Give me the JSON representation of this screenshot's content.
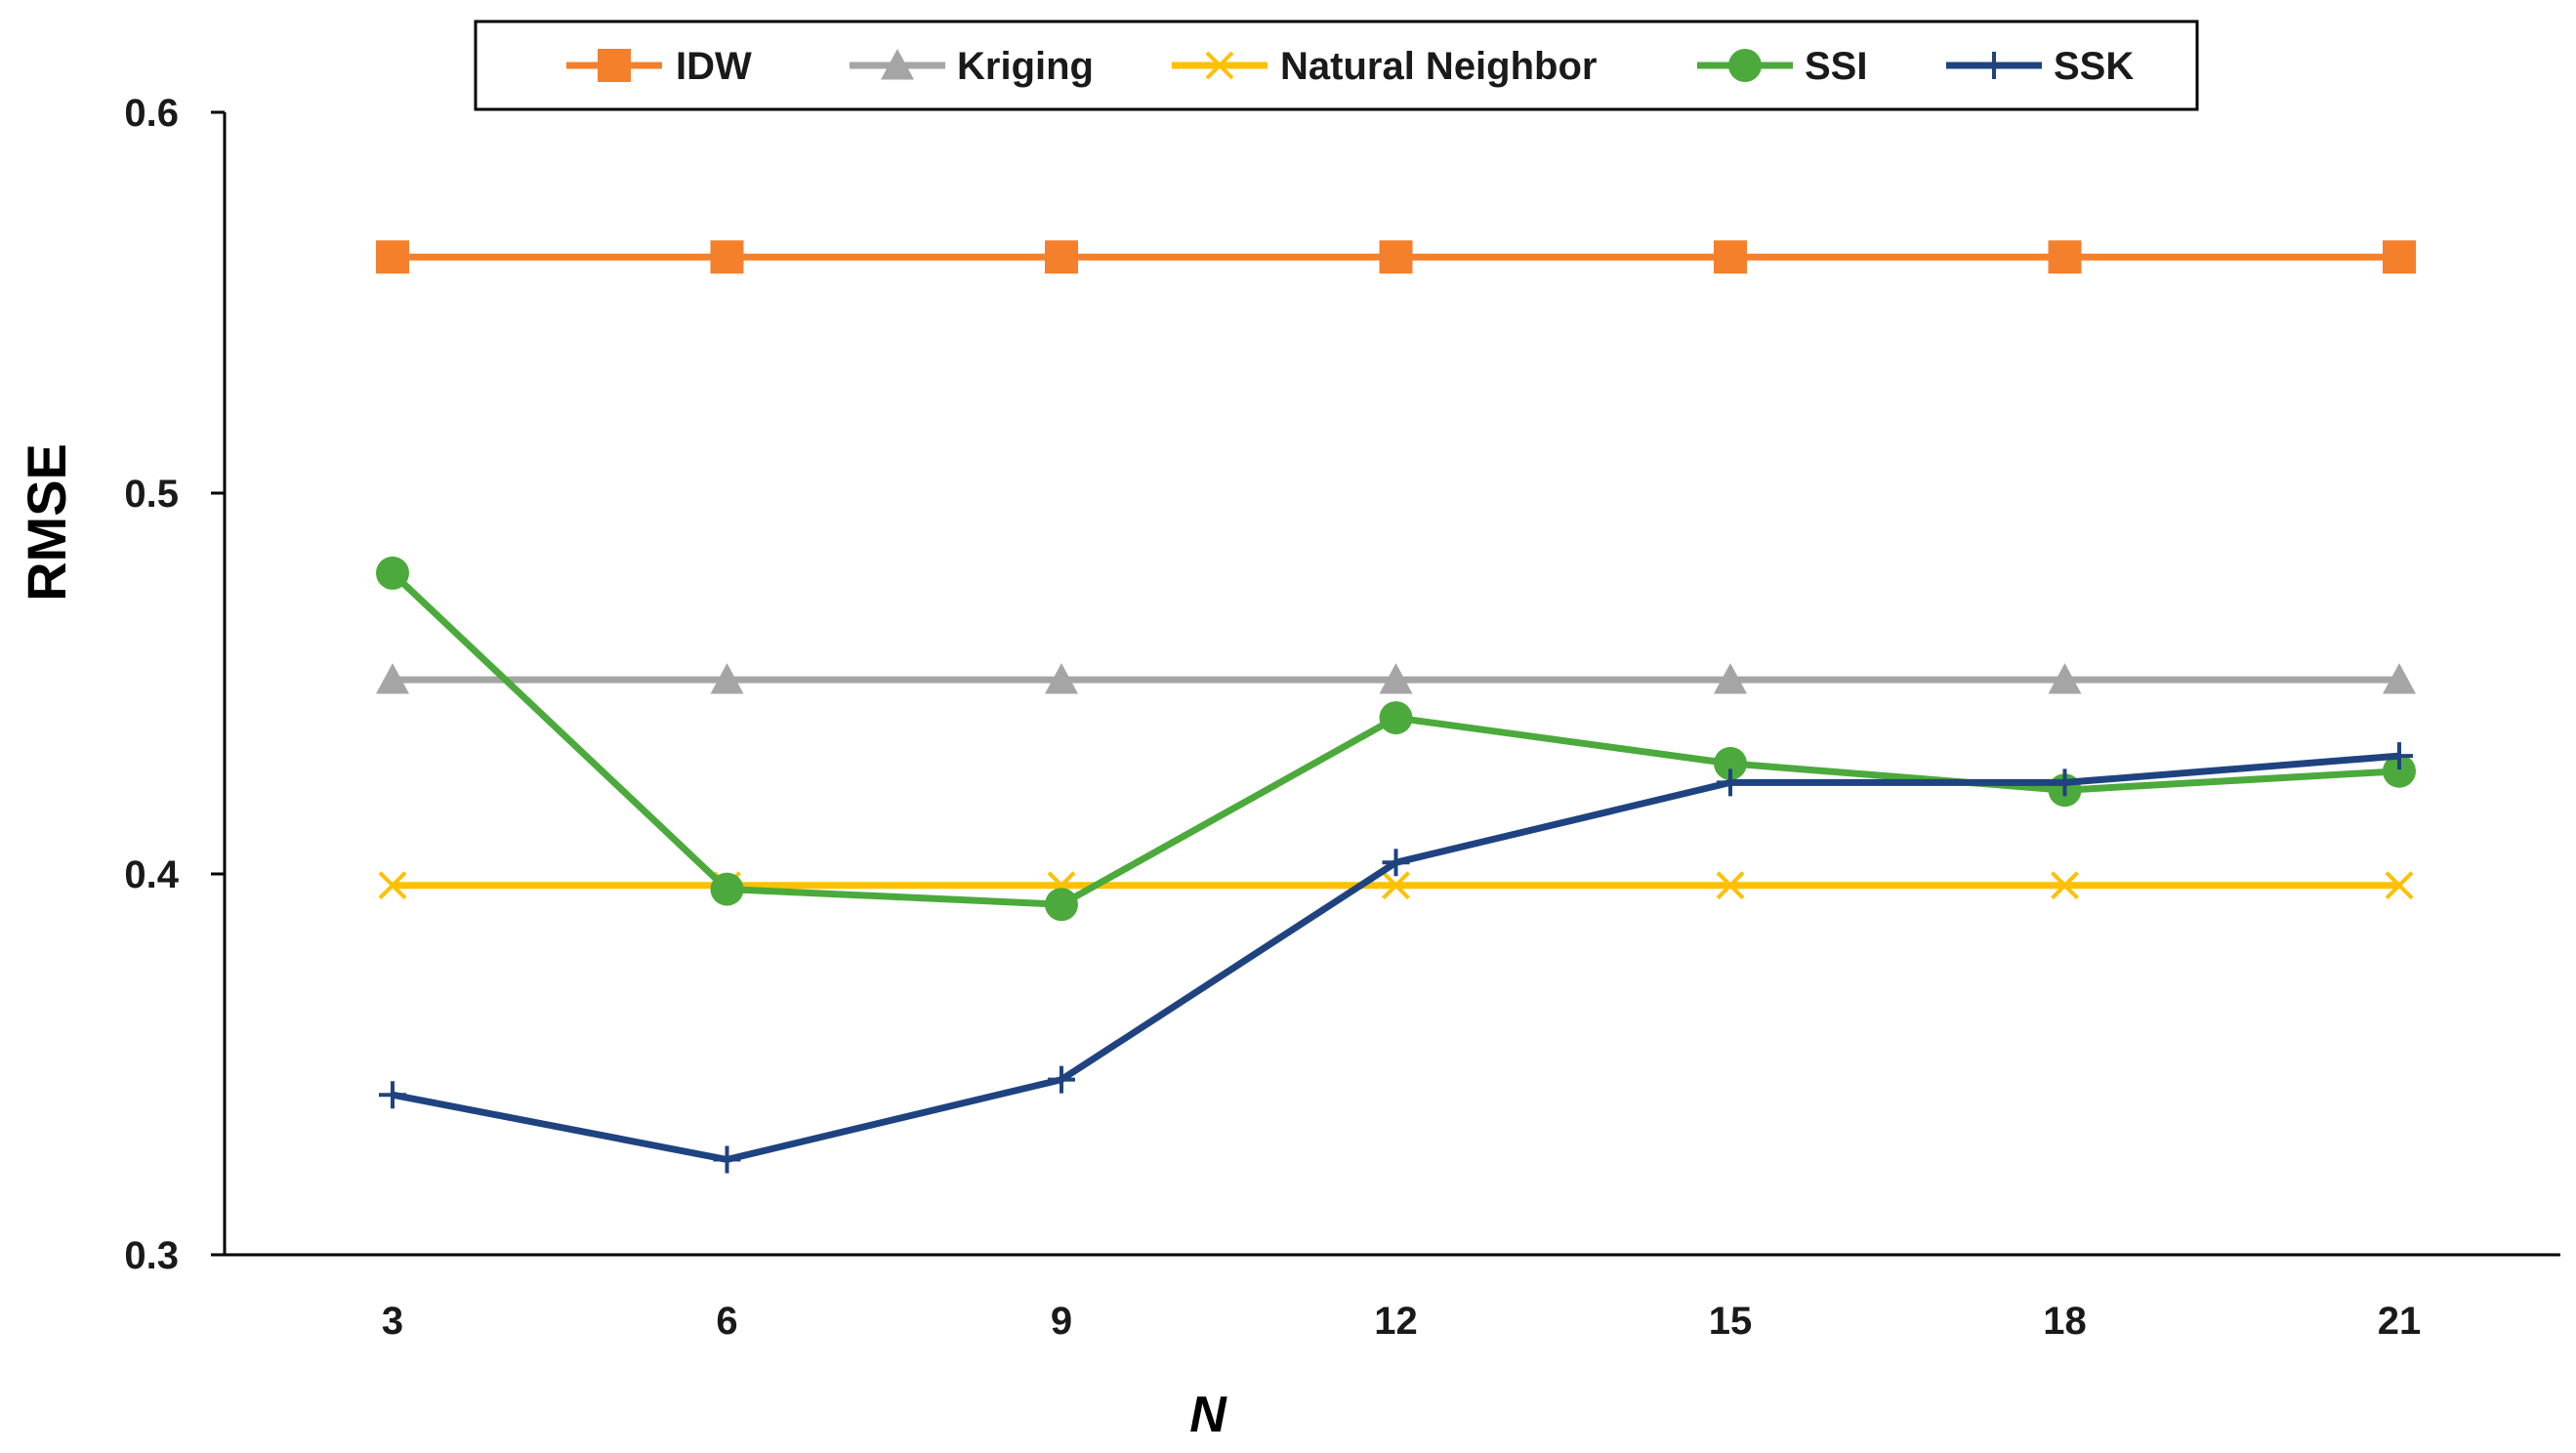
{
  "chart_data": {
    "type": "line",
    "title": "",
    "xlabel": "N",
    "ylabel": "RMSE",
    "x": [
      3,
      6,
      9,
      12,
      15,
      18,
      21
    ],
    "x_tick_labels": [
      "3",
      "6",
      "9",
      "12",
      "15",
      "18",
      "21"
    ],
    "ylim": [
      0.3,
      0.6
    ],
    "y_ticks": [
      0.3,
      0.4,
      0.5,
      0.6
    ],
    "y_tick_labels": [
      "0.3",
      "0.4",
      "0.5",
      "0.6"
    ],
    "grid": false,
    "legend_position": "top-center",
    "series": [
      {
        "name": "IDW",
        "color": "#F4802C",
        "marker": "square",
        "values": [
          0.562,
          0.562,
          0.562,
          0.562,
          0.562,
          0.562,
          0.562
        ]
      },
      {
        "name": "Kriging",
        "color": "#A5A5A5",
        "marker": "triangle",
        "values": [
          0.451,
          0.451,
          0.451,
          0.451,
          0.451,
          0.451,
          0.451
        ]
      },
      {
        "name": "Natural Neighbor",
        "color": "#FFC000",
        "marker": "x",
        "values": [
          0.397,
          0.397,
          0.397,
          0.397,
          0.397,
          0.397,
          0.397
        ]
      },
      {
        "name": "SSI",
        "color": "#4BAA3B",
        "marker": "circle",
        "values": [
          0.479,
          0.396,
          0.392,
          0.441,
          0.429,
          0.422,
          0.427
        ]
      },
      {
        "name": "SSK",
        "color": "#1F4380",
        "marker": "plus",
        "values": [
          0.342,
          0.325,
          0.346,
          0.403,
          0.424,
          0.424,
          0.431
        ]
      }
    ]
  }
}
